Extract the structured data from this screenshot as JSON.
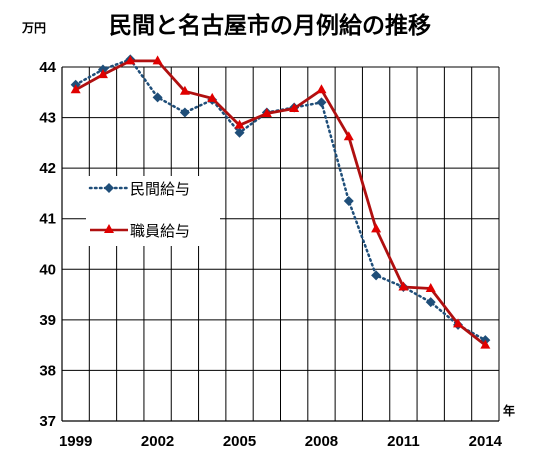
{
  "chart_data": {
    "type": "line",
    "title": "民間と名古屋市の月例給の推移",
    "yunit": "万円",
    "xunit": "年",
    "x": [
      1999,
      2000,
      2001,
      2002,
      2003,
      2004,
      2005,
      2006,
      2007,
      2008,
      2009,
      2010,
      2011,
      2012,
      2013,
      2014
    ],
    "xticks": [
      1999,
      2002,
      2005,
      2008,
      2011,
      2014
    ],
    "ylim": [
      37,
      44
    ],
    "yticks": [
      37,
      38,
      39,
      40,
      41,
      42,
      43,
      44
    ],
    "grid": true,
    "legend_position": "left-middle",
    "series": [
      {
        "name": "民間給与",
        "color": "#1f4e79",
        "line_style": "dotted",
        "marker": "diamond",
        "values": [
          43.65,
          43.95,
          44.15,
          43.4,
          43.1,
          43.35,
          42.7,
          43.1,
          43.2,
          43.3,
          41.35,
          39.88,
          39.65,
          39.35,
          38.9,
          38.6
        ]
      },
      {
        "name": "職員給与",
        "color": "#b01010",
        "line_style": "solid",
        "marker": "triangle",
        "values": [
          43.55,
          43.85,
          44.12,
          44.12,
          43.52,
          43.38,
          42.85,
          43.08,
          43.18,
          43.55,
          42.62,
          40.8,
          39.65,
          39.62,
          38.92,
          38.5
        ]
      }
    ]
  }
}
